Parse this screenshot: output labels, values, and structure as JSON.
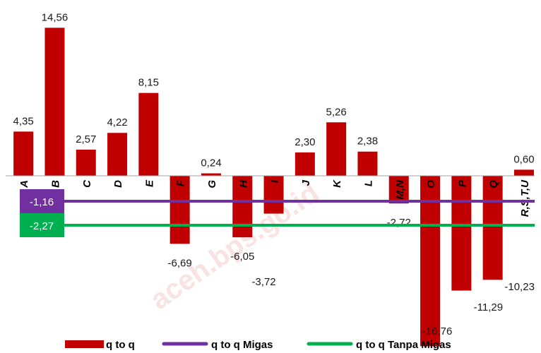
{
  "chart_data": {
    "type": "bar",
    "categories": [
      "A",
      "B",
      "C",
      "D",
      "E",
      "F",
      "G",
      "H",
      "I",
      "J",
      "K",
      "L",
      "M,N",
      "O",
      "P",
      "Q",
      "R,S,T,U"
    ],
    "series": [
      {
        "name": "q to q",
        "type": "bar",
        "color": "#c00000",
        "values": [
          4.35,
          14.56,
          2.57,
          4.22,
          8.15,
          -6.69,
          0.24,
          -6.05,
          -3.72,
          2.3,
          5.26,
          2.38,
          -2.72,
          -16.76,
          -11.29,
          -10.23,
          0.6
        ],
        "labels": [
          "4,35",
          "14,56",
          "2,57",
          "4,22",
          "8,15",
          "-6,69",
          "0,24",
          "-6,05",
          "-3,72",
          "2,30",
          "5,26",
          "2,38",
          "-2,72",
          "-16,76",
          "-11,29",
          "-10,23",
          "0,60"
        ]
      },
      {
        "name": "q to q Migas",
        "type": "line",
        "color": "#7030a0",
        "value": -1.16,
        "label": "-1,16"
      },
      {
        "name": "q to q Tanpa Migas",
        "type": "line",
        "color": "#00b050",
        "value": -2.27,
        "label": "-2,27"
      }
    ],
    "legend": "bottom",
    "grid": false,
    "watermark": "aceh.bps.go.id"
  }
}
